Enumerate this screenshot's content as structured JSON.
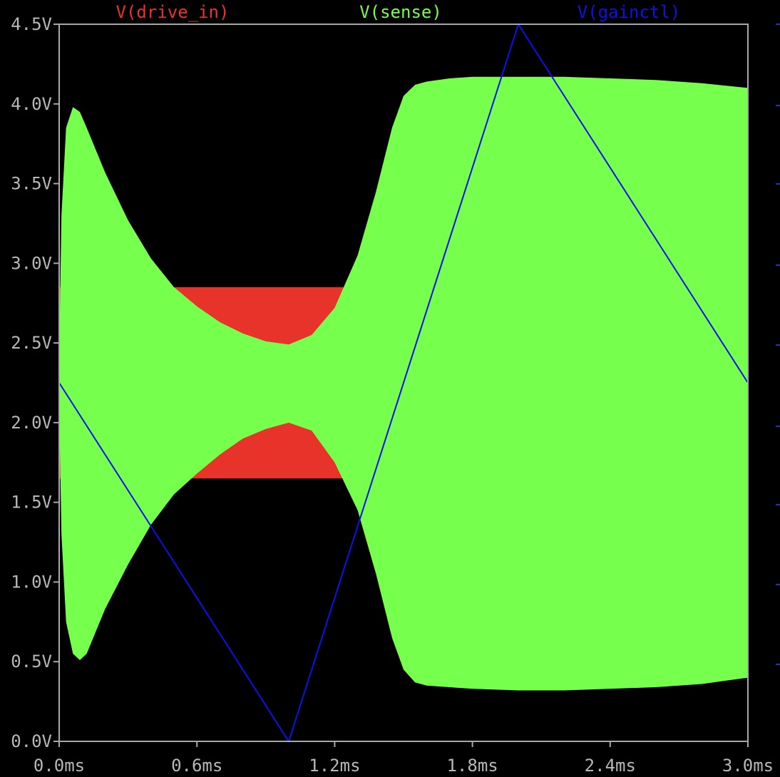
{
  "chart_data": {
    "type": "line",
    "title": "",
    "xlabel": "",
    "ylabel": "",
    "x_unit": "ms",
    "y_unit": "V",
    "xlim": [
      0.0,
      3.0
    ],
    "ylim": [
      0.0,
      4.5
    ],
    "x_ticks": [
      "0.0ms",
      "0.6ms",
      "1.2ms",
      "1.8ms",
      "2.4ms",
      "3.0ms"
    ],
    "y_ticks": [
      "0.0V",
      "0.5V",
      "1.0V",
      "1.5V",
      "2.0V",
      "2.5V",
      "3.0V",
      "3.5V",
      "4.0V",
      "4.5V"
    ],
    "grid": false,
    "legend": "top",
    "series": [
      {
        "name": "V(drive_in)",
        "color": "#e8332a",
        "style": "envelope",
        "x": [
          0.0,
          3.0
        ],
        "upper": [
          2.85,
          2.85
        ],
        "lower": [
          1.65,
          1.65
        ]
      },
      {
        "name": "V(sense)",
        "color": "#77ff4d",
        "style": "envelope",
        "x": [
          0.0,
          0.01,
          0.03,
          0.06,
          0.09,
          0.12,
          0.2,
          0.3,
          0.4,
          0.5,
          0.6,
          0.7,
          0.8,
          0.9,
          1.0,
          1.1,
          1.2,
          1.3,
          1.38,
          1.45,
          1.5,
          1.55,
          1.6,
          1.7,
          1.8,
          2.0,
          2.2,
          2.4,
          2.6,
          2.8,
          3.0
        ],
        "upper": [
          2.4,
          3.3,
          3.85,
          3.98,
          3.95,
          3.85,
          3.57,
          3.27,
          3.03,
          2.85,
          2.73,
          2.63,
          2.56,
          2.51,
          2.49,
          2.55,
          2.72,
          3.05,
          3.45,
          3.85,
          4.05,
          4.12,
          4.14,
          4.16,
          4.17,
          4.17,
          4.17,
          4.16,
          4.15,
          4.13,
          4.1
        ],
        "lower": [
          2.1,
          1.3,
          0.75,
          0.55,
          0.51,
          0.55,
          0.83,
          1.11,
          1.36,
          1.55,
          1.68,
          1.8,
          1.9,
          1.96,
          2.0,
          1.95,
          1.75,
          1.45,
          1.05,
          0.65,
          0.45,
          0.37,
          0.35,
          0.34,
          0.33,
          0.32,
          0.32,
          0.33,
          0.34,
          0.36,
          0.4
        ]
      },
      {
        "name": "V(gainctl)",
        "color": "#1010e8",
        "style": "line",
        "x": [
          0.0,
          1.0,
          2.0,
          3.0
        ],
        "y": [
          2.25,
          0.0,
          4.5,
          2.25
        ]
      }
    ]
  }
}
